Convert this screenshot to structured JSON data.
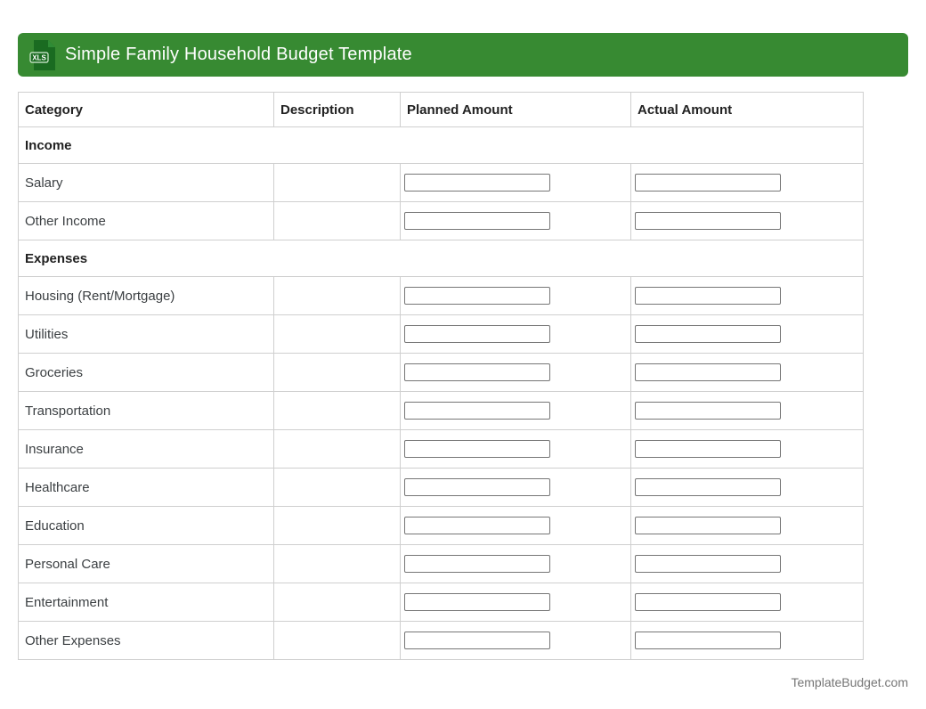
{
  "header": {
    "title": "Simple Family Household Budget Template",
    "file_icon": {
      "name": "xls-file-icon",
      "label": "XLS"
    },
    "bg_color": "#378a32"
  },
  "table": {
    "columns": [
      "Category",
      "Description",
      "Planned Amount",
      "Actual Amount"
    ],
    "sections": [
      {
        "label": "Income",
        "rows": [
          {
            "category": "Salary",
            "description": "",
            "planned_value": "",
            "actual_value": ""
          },
          {
            "category": "Other Income",
            "description": "",
            "planned_value": "",
            "actual_value": ""
          }
        ]
      },
      {
        "label": "Expenses",
        "rows": [
          {
            "category": "Housing (Rent/Mortgage)",
            "description": "",
            "planned_value": "",
            "actual_value": ""
          },
          {
            "category": "Utilities",
            "description": "",
            "planned_value": "",
            "actual_value": ""
          },
          {
            "category": "Groceries",
            "description": "",
            "planned_value": "",
            "actual_value": ""
          },
          {
            "category": "Transportation",
            "description": "",
            "planned_value": "",
            "actual_value": ""
          },
          {
            "category": "Insurance",
            "description": "",
            "planned_value": "",
            "actual_value": ""
          },
          {
            "category": "Healthcare",
            "description": "",
            "planned_value": "",
            "actual_value": ""
          },
          {
            "category": "Education",
            "description": "",
            "planned_value": "",
            "actual_value": ""
          },
          {
            "category": "Personal Care",
            "description": "",
            "planned_value": "",
            "actual_value": ""
          },
          {
            "category": "Entertainment",
            "description": "",
            "planned_value": "",
            "actual_value": ""
          },
          {
            "category": "Other Expenses",
            "description": "",
            "planned_value": "",
            "actual_value": ""
          }
        ]
      }
    ],
    "border_color": "#cfcfcf"
  },
  "footer": {
    "site": "TemplateBudget.com"
  }
}
